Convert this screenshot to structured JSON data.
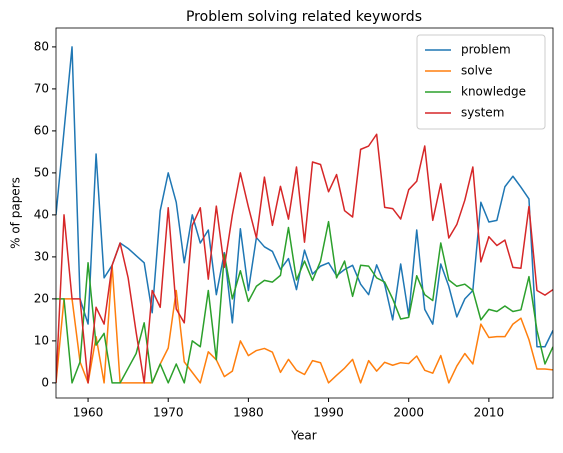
{
  "chart_data": {
    "type": "line",
    "title": "Problem solving related keywords",
    "xlabel": "Year",
    "ylabel": "% of papers",
    "x": [
      1956,
      1957,
      1958,
      1959,
      1960,
      1961,
      1962,
      1963,
      1964,
      1965,
      1966,
      1967,
      1968,
      1969,
      1970,
      1971,
      1972,
      1973,
      1974,
      1975,
      1976,
      1977,
      1978,
      1979,
      1980,
      1981,
      1982,
      1983,
      1984,
      1985,
      1986,
      1987,
      1988,
      1989,
      1990,
      1991,
      1992,
      1993,
      1994,
      1995,
      1996,
      1997,
      1998,
      1999,
      2000,
      2001,
      2002,
      2003,
      2004,
      2005,
      2006,
      2007,
      2008,
      2009,
      2010,
      2011,
      2012,
      2013,
      2014,
      2015,
      2016,
      2017,
      2018
    ],
    "series": [
      {
        "name": "problem",
        "color": "#1f77b4",
        "values": [
          40,
          60,
          80,
          20,
          14,
          54.5,
          25,
          28,
          33.3,
          32,
          30.3,
          28.6,
          16.7,
          41,
          50,
          43,
          28.6,
          40,
          33.3,
          36.4,
          21,
          31,
          14.3,
          36.7,
          22,
          34.6,
          32.4,
          31.3,
          27,
          29.6,
          22.2,
          31.6,
          25.9,
          27.8,
          28.6,
          25.5,
          27,
          28,
          23.5,
          21,
          28.1,
          23.5,
          15,
          28.3,
          16,
          36.4,
          17.5,
          14,
          28.3,
          23,
          15.7,
          20,
          22,
          43,
          38.3,
          38.7,
          46.7,
          49.2,
          46.6,
          43.8,
          8.6,
          8.6,
          12.5
        ]
      },
      {
        "name": "solve",
        "color": "#ff7f0e",
        "values": [
          0,
          20,
          20,
          5,
          0,
          11,
          0,
          28,
          0,
          0,
          0,
          0,
          0,
          4.5,
          8.3,
          22,
          5,
          2.5,
          0,
          7.4,
          5.5,
          1.5,
          2.8,
          10,
          6.5,
          7.7,
          8.2,
          7.3,
          2.5,
          5.6,
          3,
          2,
          5.3,
          4.8,
          0,
          1.8,
          3.5,
          5.6,
          0,
          5.3,
          2.8,
          4.9,
          4.2,
          4.8,
          4.6,
          6.4,
          3,
          2.3,
          6.5,
          0,
          4,
          7,
          4.5,
          14,
          10.8,
          11,
          11,
          14,
          15.4,
          10.3,
          3.3,
          3.3,
          3.1
        ]
      },
      {
        "name": "knowledge",
        "color": "#2ca02c",
        "values": [
          20,
          20,
          0,
          5,
          28.6,
          9,
          11.8,
          0,
          0,
          3.5,
          7,
          14.3,
          0,
          4.5,
          0,
          4.5,
          0,
          10,
          8.6,
          22,
          5.5,
          30.6,
          20,
          26.7,
          19.4,
          23,
          24.4,
          24,
          25.6,
          37,
          24.5,
          29,
          24.4,
          29,
          38.4,
          25,
          29,
          20.6,
          28,
          27.8,
          25,
          24,
          20,
          15.2,
          15.6,
          25.5,
          21,
          19.6,
          33.3,
          24.5,
          23,
          23.5,
          22,
          15,
          17.5,
          17,
          18.3,
          17,
          17.4,
          25.3,
          12.5,
          4.5,
          8.6
        ]
      },
      {
        "name": "system",
        "color": "#d62728",
        "values": [
          0,
          40,
          20,
          20,
          0,
          18,
          14,
          28,
          33.3,
          25,
          12,
          0,
          22,
          18,
          41.7,
          17.6,
          14.3,
          37.5,
          41.7,
          24.7,
          42.1,
          27.5,
          40,
          50,
          41.9,
          34.5,
          49,
          37.5,
          46.8,
          39,
          51.4,
          33.5,
          52.6,
          52,
          45.5,
          49.6,
          41,
          39.5,
          55.6,
          56.4,
          59.2,
          41.8,
          41.5,
          39,
          46,
          48,
          56.4,
          38.7,
          47.4,
          34.5,
          37.7,
          43.5,
          51.4,
          28.8,
          34.8,
          32.7,
          34,
          27.5,
          27.3,
          42,
          22,
          20.9,
          22.2
        ]
      }
    ],
    "xlim": [
      1956,
      2018
    ],
    "ylim": [
      -3.6,
      84.5
    ],
    "xticks": [
      1960,
      1970,
      1980,
      1990,
      2000,
      2010
    ],
    "yticks": [
      0,
      10,
      20,
      30,
      40,
      50,
      60,
      70,
      80
    ],
    "legend": "upper right"
  }
}
